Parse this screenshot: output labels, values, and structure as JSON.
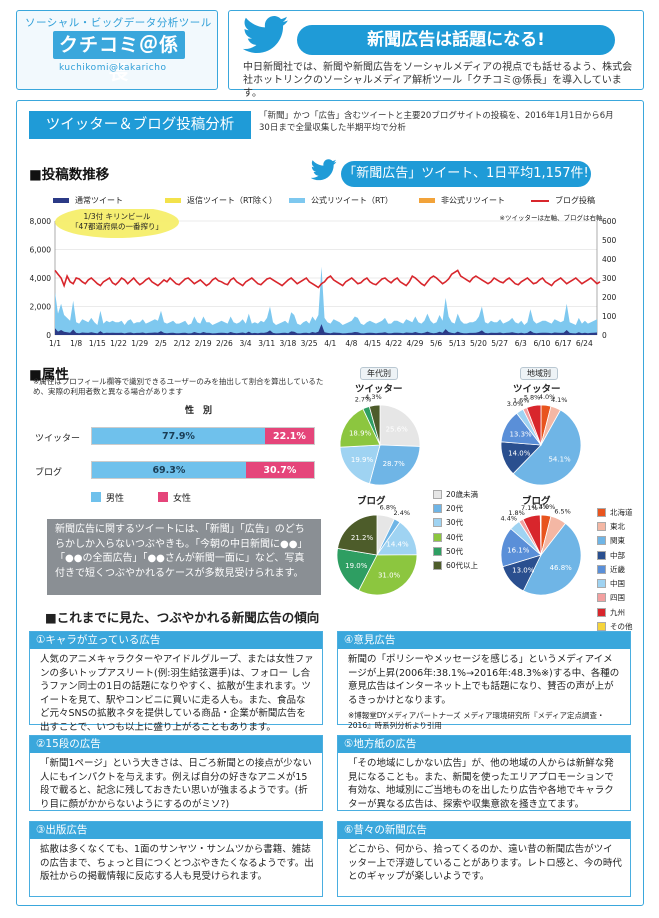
{
  "header": {
    "tool_sub": "ソーシャル・ビッグデータ分析ツール",
    "logo": "クチコミ＠係長",
    "logo_en": "kuchikomi@kakaricho",
    "headline": "新聞広告は話題になる!",
    "intro": "中日新聞社では、新聞や新聞広告をソーシャルメディアの視点でも話せるよう、株式会社ホットリンクのソーシャルメディア解析ツール「クチコミ@係長」を導入しています。"
  },
  "section": {
    "badge": "ツイッター＆ブログ投稿分析",
    "note": "「新聞」かつ「広告」含むツイートと主要20ブログサイトの投稿を、2016年1月1日から6月30日まで全量収集した半期平均で分析",
    "volume_title": "■投稿数推移",
    "callout": "「新聞広告」ツイート、1日平均1,157件!",
    "chart_note": "※ツイッターは左軸、ブログは右軸"
  },
  "colors": {
    "normal_tweet": "#2b3a86",
    "reply": "#f3e24b",
    "official_rt": "#7ec8ef",
    "unofficial_rt": "#f2a33a",
    "blog": "#d8262c",
    "male": "#6fc1ec",
    "female": "#e5457a"
  },
  "chart_data": {
    "type": "area",
    "series": [
      {
        "name": "通常ツイート",
        "axis": "left"
      },
      {
        "name": "返信ツイート（RT除く）",
        "axis": "left"
      },
      {
        "name": "公式リツイート（RT）",
        "axis": "left"
      },
      {
        "name": "非公式リツイート",
        "axis": "left"
      },
      {
        "name": "ブログ投稿",
        "axis": "right",
        "type": "line"
      }
    ],
    "x_ticks": [
      "1/1",
      "1/8",
      "1/15",
      "1/22",
      "1/29",
      "2/5",
      "2/12",
      "2/19",
      "2/26",
      "3/4",
      "3/11",
      "3/18",
      "3/25",
      "4/1",
      "4/8",
      "4/15",
      "4/22",
      "4/29",
      "5/6",
      "5/13",
      "5/20",
      "5/27",
      "6/3",
      "6/10",
      "6/17",
      "6/24"
    ],
    "y_left_ticks": [
      "0",
      "2,000",
      "4,000",
      "6,000",
      "8,000"
    ],
    "y_right_ticks": [
      "0",
      "100",
      "200",
      "300",
      "400",
      "500",
      "600"
    ],
    "ylim_left": [
      0,
      8000
    ],
    "ylim_right": [
      0,
      600
    ],
    "tweet_total": [
      3000,
      1500,
      2200,
      1400,
      1200,
      1000,
      2400,
      900,
      800,
      1100,
      1000,
      900,
      1200,
      900,
      700,
      1700,
      800,
      1000,
      900,
      1000,
      900,
      900,
      1000,
      700,
      1000,
      1100,
      800,
      900,
      900,
      1100,
      800,
      900,
      1000,
      1100,
      1000,
      1700,
      900,
      800,
      900,
      1000,
      800,
      800,
      900,
      1000,
      700,
      800,
      1300,
      900,
      800,
      1300,
      900,
      900,
      700,
      800,
      900,
      1000,
      900,
      800,
      1300,
      900,
      800,
      900,
      1100,
      800,
      1500,
      800,
      900,
      800,
      1000,
      900,
      1200,
      2000,
      900,
      700,
      800,
      900,
      1000,
      800,
      1600,
      1400,
      800,
      700,
      900,
      1000,
      800,
      1300,
      1000,
      1400,
      4800,
      1200,
      900,
      800,
      1100,
      1000,
      900,
      700,
      800,
      900,
      1000,
      1300,
      1200,
      800,
      700,
      900,
      1000,
      900,
      800,
      900,
      1000,
      1200,
      800,
      800,
      1000,
      1000,
      900,
      800,
      1100,
      1000,
      900,
      1300,
      900,
      800,
      1000,
      1500,
      1000,
      800,
      900,
      1400,
      1000,
      2600,
      1300,
      900,
      800,
      1500,
      1000,
      800,
      800,
      900,
      900,
      1000,
      1300,
      2000,
      900,
      800,
      1000,
      900,
      900,
      1100,
      800,
      900,
      1000,
      1200,
      900,
      800,
      1000,
      700,
      900,
      1800,
      1000,
      800,
      900,
      1000,
      1000,
      900,
      800,
      1100,
      1000,
      900,
      1000,
      2200,
      900,
      800,
      700,
      1200,
      800,
      1000,
      800,
      900,
      1000,
      1100
    ],
    "blog_total": [
      340,
      320,
      300,
      260,
      310,
      280,
      270,
      300,
      295,
      280,
      270,
      290,
      300,
      285,
      270,
      260,
      280,
      290,
      300,
      275,
      265,
      280,
      300,
      290,
      270,
      285,
      300,
      280,
      265,
      275,
      290,
      300,
      280,
      270,
      260,
      275,
      290,
      280,
      300,
      285,
      270,
      265,
      280,
      295,
      300,
      285,
      270,
      280,
      290,
      275,
      260,
      270,
      290,
      300,
      285,
      280,
      270,
      265,
      290,
      300,
      280,
      270,
      260,
      280,
      290,
      300,
      285,
      270,
      265,
      280,
      295,
      300,
      290,
      280,
      270,
      260,
      275,
      290,
      300,
      285,
      270,
      280,
      290,
      300,
      280,
      270,
      260,
      250,
      270,
      280,
      300,
      310,
      290,
      280,
      270,
      260,
      280,
      290,
      300,
      285,
      270,
      275,
      290,
      300,
      280,
      270,
      265,
      280,
      295,
      300,
      285,
      275,
      290,
      300,
      280,
      270,
      260,
      280,
      310,
      300,
      285,
      270,
      260,
      280,
      300,
      310,
      300,
      285,
      270,
      280,
      295,
      320,
      330,
      340,
      310,
      300,
      290,
      280,
      300,
      310,
      300,
      290,
      280,
      270,
      280,
      300,
      290,
      280,
      275,
      290,
      300,
      285,
      270,
      265,
      280,
      290,
      300,
      285,
      270,
      275,
      290,
      300,
      280,
      270,
      260,
      280,
      290,
      300,
      285,
      270,
      280,
      290,
      300,
      285,
      270,
      280,
      290,
      300,
      285,
      270,
      280
    ]
  },
  "annotation": {
    "date": "1/3付 キリンビール",
    "title": "「47都道府県の一番搾り」"
  },
  "legend_labels": [
    "通常ツイート",
    "返信ツイート（RT除く）",
    "公式リツイート（RT）",
    "非公式リツイート",
    "ブログ投稿"
  ],
  "attributes": {
    "title": "■属性",
    "note": "※属性はプロフィール欄等で識別できるユーザーのみを抽出して割合を算出しているため、実際の利用者数と異なる場合があります",
    "gender_title": "性　別",
    "rows": [
      {
        "label": "ツイッター",
        "male": 77.9,
        "female": 22.1,
        "male_text": "77.9%",
        "female_text": "22.1%"
      },
      {
        "label": "ブログ",
        "male": 69.3,
        "female": 30.7,
        "male_text": "69.3%",
        "female_text": "30.7%"
      }
    ],
    "male_label": "男性",
    "female_label": "女性",
    "quote": "新聞広告に関するツイートには、「新聞」「広告」のどちらかしか入らないつぶやきも。「今朝の中日新聞に●●」「●●の全面広告」「●●さんが新聞一面に」など、写真付きで短くつぶやかれるケースが多数見受けられます。"
  },
  "age": {
    "title": "年代別",
    "twitter_label": "ツイッター",
    "blog_label": "ブログ",
    "legend": [
      "20歳未満",
      "20代",
      "30代",
      "40代",
      "50代",
      "60代以上"
    ],
    "colors": [
      "#e6e6e6",
      "#6fb5e6",
      "#9fd3f2",
      "#8cc63f",
      "#2e9e62",
      "#4d5c2a"
    ],
    "twitter": [
      25.6,
      28.7,
      19.9,
      18.9,
      2.7,
      4.3
    ],
    "twitter_text": [
      "25.6%",
      "28.7%",
      "19.9%",
      "18.9%",
      "2.7%",
      "4.3%"
    ],
    "blog": [
      6.8,
      2.4,
      14.4,
      31.0,
      19.0,
      21.2
    ],
    "blog_text": [
      "6.8%",
      "2.4%",
      "14.4%",
      "31.0%",
      "19.0%",
      "21.2%"
    ]
  },
  "region": {
    "title": "地域別",
    "twitter_label": "ツイッター",
    "blog_label": "ブログ",
    "legend": [
      "北海道",
      "東北",
      "関東",
      "中部",
      "近畿",
      "中国",
      "四国",
      "九州",
      "その他"
    ],
    "colors": [
      "#e8541e",
      "#f4b7a4",
      "#6fb5e6",
      "#2a4f8f",
      "#5a8fd8",
      "#9fd3f2",
      "#f3a0a0",
      "#d8262c",
      "#f5d43b"
    ],
    "twitter": [
      4.0,
      4.1,
      54.1,
      14.0,
      13.3,
      3.0,
      1.6,
      5.8,
      0.0
    ],
    "twitter_text": [
      "4.0%",
      "4.1%",
      "54.1%",
      "14.0%",
      "13.3%",
      "3.0%",
      "1.6%",
      "5.8%",
      "0.0%"
    ],
    "blog": [
      4.0,
      6.5,
      46.8,
      13.0,
      16.1,
      4.4,
      1.8,
      7.1,
      0.3
    ],
    "blog_text": [
      "4.0%",
      "6.5%",
      "46.8%",
      "13.0%",
      "16.1%",
      "4.4%",
      "1.8%",
      "7.1%",
      "0.3%"
    ]
  },
  "trends": {
    "title": "■これまでに見た、つぶやかれる新聞広告の傾向",
    "items": [
      {
        "heading": "①キャラが立っている広告",
        "body": "人気のアニメキャラクターやアイドルグループ、または女性ファンの多いトップアスリート(例:羽生結弦選手)は、フォロー し合うファン同士の1日の話題になりやすく、拡散が生まれます。ツイートを見て、駅やコンビニに買いに走る人も。また、食品など元々SNSの拡散ネタを提供している商品・企業が新聞広告を出すことで、いつも以上に盛り上がることもあります。",
        "source": ""
      },
      {
        "heading": "④意見広告",
        "body": "新聞の「ポリシーやメッセージを感じる」というメディアイメージが上昇(2006年:38.1%→2016年:48.3%※)する中、各種の意見広告はインターネット上でも話題になり、賛否の声が上がるきっかけとなります。",
        "source": "※博報堂DYメディアパートナーズ メディア環境研究所『メディア定点調査・2016』時系列分析より引用"
      },
      {
        "heading": "②15段の広告",
        "body": "「新聞1ページ」という大きさは、日ごろ新聞との接点が少ない人にもインパクトを与えます。例えば自分の好きなアニメが15段で載ると、記念に残しておきたい思いが強まるようです。(折り目に顔がかからないようにするのがミソ?)",
        "source": ""
      },
      {
        "heading": "⑤地方紙の広告",
        "body": "「その地域にしかない広告」が、他の地域の人からは新鮮な発見になることも。また、新聞を使ったエリアプロモーションで有効な、地域別にご当地ものを出したり広告や各地でキャラクターが異なる広告は、探索や収集意欲を掻き立てます。",
        "source": ""
      },
      {
        "heading": "③出版広告",
        "body": "拡散は多くなくても、1面のサンヤツ・サンムツから書籍、雑誌の広告まで、ちょっと目につくとつぶやきたくなるようです。出版社からの掲載情報に反応する人も見受けられます。",
        "source": ""
      },
      {
        "heading": "⑥昔々の新聞広告",
        "body": "どこから、何から、拾ってくるのか、遠い昔の新聞広告がツイッター上で浮遊していることがあります。レトロ感と、今の時代とのギャップが楽しいようです。",
        "source": ""
      }
    ]
  }
}
